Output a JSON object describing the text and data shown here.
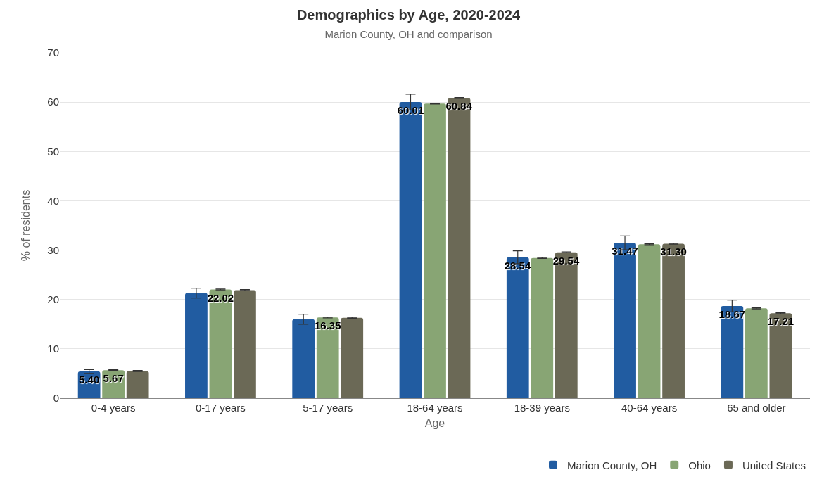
{
  "chart_data": {
    "type": "bar",
    "title": "Demographics by Age, 2020-2024",
    "subtitle": "Marion County, OH and comparison",
    "xlabel": "Age",
    "ylabel": "% of residents",
    "categories": [
      "0-4 years",
      "0-17 years",
      "5-17 years",
      "18-64 years",
      "18-39 years",
      "40-64 years",
      "65 and older"
    ],
    "series": [
      {
        "name": "Marion County, OH",
        "color": "#215ca1",
        "values": [
          5.4,
          21.3,
          16.0,
          60.01,
          28.54,
          31.47,
          18.67
        ],
        "errors": [
          0.4,
          1.0,
          1.0,
          1.6,
          1.3,
          1.4,
          1.2
        ],
        "value_labels": [
          "5.40",
          null,
          null,
          "60.01",
          "28.54",
          "31.47",
          "18.67"
        ]
      },
      {
        "name": "Ohio",
        "color": "#88a574",
        "values": [
          5.67,
          22.02,
          16.35,
          59.7,
          28.4,
          31.2,
          18.2
        ],
        "errors": [
          0.1,
          0.1,
          0.1,
          0.1,
          0.1,
          0.1,
          0.1
        ],
        "value_labels": [
          "5.67",
          "22.02",
          "16.35",
          null,
          null,
          null,
          null
        ]
      },
      {
        "name": "United States",
        "color": "#6b6956",
        "values": [
          5.5,
          21.9,
          16.3,
          60.84,
          29.54,
          31.3,
          17.21
        ],
        "errors": [
          0.1,
          0.1,
          0.1,
          0.1,
          0.1,
          0.1,
          0.1
        ],
        "value_labels": [
          null,
          null,
          null,
          "60.84",
          "29.54",
          "31.30",
          "17.21"
        ]
      }
    ],
    "ylim": [
      0,
      70
    ],
    "yticks": [
      0,
      10,
      20,
      30,
      40,
      50,
      60,
      70
    ],
    "grid": "y",
    "legend": "bottom right"
  }
}
